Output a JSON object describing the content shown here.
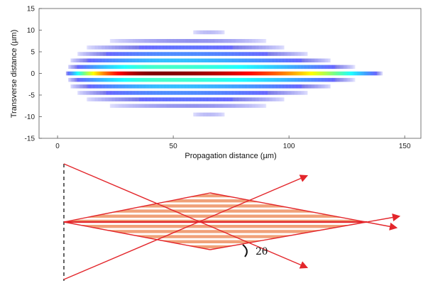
{
  "chart_data": {
    "type": "heatmap",
    "title": "",
    "xlabel": "Propagation distance (µm)",
    "ylabel": "Transverse distance (µm)",
    "xlim": [
      -8,
      157
    ],
    "ylim": [
      -15,
      15
    ],
    "x_ticks": [
      0,
      50,
      100,
      150
    ],
    "y_ticks": [
      15,
      10,
      5,
      0,
      -5,
      -10,
      -15
    ],
    "grid": false,
    "legend": "none",
    "colormap": "jet",
    "fringes": [
      {
        "y": 0,
        "x_start": 3,
        "x_end": 140,
        "peak_x": 42,
        "intensity": 1.0
      },
      {
        "y": 1.5,
        "x_start": 4,
        "x_end": 128,
        "peak_x": 45,
        "intensity": 0.45
      },
      {
        "y": -1.5,
        "x_start": 4,
        "x_end": 128,
        "peak_x": 45,
        "intensity": 0.45
      },
      {
        "y": 3,
        "x_start": 5,
        "x_end": 118,
        "peak_x": 48,
        "intensity": 0.32
      },
      {
        "y": -3,
        "x_start": 5,
        "x_end": 118,
        "peak_x": 48,
        "intensity": 0.32
      },
      {
        "y": 4.5,
        "x_start": 8,
        "x_end": 108,
        "peak_x": 50,
        "intensity": 0.24
      },
      {
        "y": -4.5,
        "x_start": 8,
        "x_end": 108,
        "peak_x": 50,
        "intensity": 0.24
      },
      {
        "y": 6,
        "x_start": 12,
        "x_end": 98,
        "peak_x": 55,
        "intensity": 0.18
      },
      {
        "y": -6,
        "x_start": 12,
        "x_end": 98,
        "peak_x": 55,
        "intensity": 0.18
      },
      {
        "y": 7.5,
        "x_start": 22,
        "x_end": 90,
        "peak_x": 58,
        "intensity": 0.12
      },
      {
        "y": -7.5,
        "x_start": 22,
        "x_end": 90,
        "peak_x": 58,
        "intensity": 0.12
      },
      {
        "y": 9.5,
        "x_start": 58,
        "x_end": 72,
        "peak_x": 65,
        "intensity": 0.07
      },
      {
        "y": -9.5,
        "x_start": 58,
        "x_end": 72,
        "peak_x": 65,
        "intensity": 0.07
      }
    ]
  },
  "diagram": {
    "angle_label": "2θ",
    "colors": {
      "beam": "#e3262b",
      "fringe": "#f0a179",
      "source_line": "#222222"
    },
    "fringe_count": 11
  }
}
